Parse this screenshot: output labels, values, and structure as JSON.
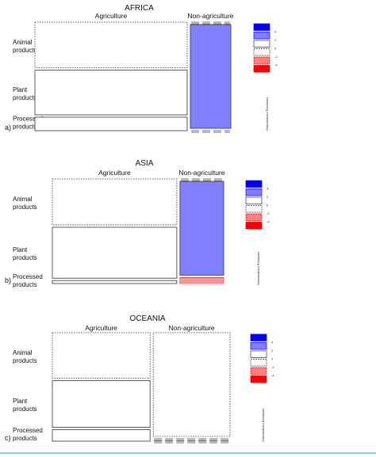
{
  "colors": {
    "dark_blue": "#0000ee",
    "light_blue": "#8080ff",
    "light_red": "#ff8080",
    "dark_red": "#ff0000",
    "bottom_rule": "#7fd4e8"
  },
  "chart_data": [
    {
      "type": "mosaic",
      "panel_label": "a)",
      "title": "AFRICA",
      "columns": [
        "Agriculture",
        "Non-agriculture"
      ],
      "rows": [
        "Animal products",
        "Plant products",
        "Processed products"
      ],
      "column_shares": [
        0.79,
        0.21
      ],
      "cell_shares": [
        [
          0.44,
          0.43,
          0.13
        ],
        [
          0.0,
          1.0,
          0.0
        ]
      ],
      "residual_shading": [
        [
          "none",
          "none",
          "none"
        ],
        [
          "none",
          "light_blue",
          "none"
        ]
      ],
      "legend_title": "Standardized Residuals",
      "legend_ticks": [
        "4",
        "2",
        "0",
        "-2",
        "-4"
      ]
    },
    {
      "type": "mosaic",
      "panel_label": "b)",
      "title": "ASIA",
      "columns": [
        "Agriculture",
        "Non-agriculture"
      ],
      "rows": [
        "Animal products",
        "Plant products",
        "Processed products"
      ],
      "column_shares": [
        0.74,
        0.26
      ],
      "cell_shares": [
        [
          0.46,
          0.51,
          0.03
        ],
        [
          0.0,
          0.94,
          0.06
        ]
      ],
      "residual_shading": [
        [
          "none",
          "none",
          "none"
        ],
        [
          "none",
          "light_blue",
          "light_red"
        ]
      ],
      "legend_title": "Standardized Residuals",
      "legend_ticks": [
        "4",
        "2",
        "0",
        "-2",
        "-4"
      ]
    },
    {
      "type": "mosaic",
      "panel_label": "c)",
      "title": "OCEANIA",
      "columns": [
        "Agriculture",
        "Non-agriculture"
      ],
      "rows": [
        "Animal products",
        "Plant products",
        "Processed products"
      ],
      "column_shares": [
        0.56,
        0.44
      ],
      "cell_shares": [
        [
          0.44,
          0.45,
          0.11
        ],
        [
          1.0,
          0.0,
          0.0
        ]
      ],
      "residual_shading": [
        [
          "none",
          "none",
          "none"
        ],
        [
          "none",
          "none",
          "none"
        ]
      ],
      "legend_title": "Standardized Residuals",
      "legend_ticks": [
        "4",
        "2",
        "0",
        "-2",
        "-4"
      ]
    }
  ]
}
